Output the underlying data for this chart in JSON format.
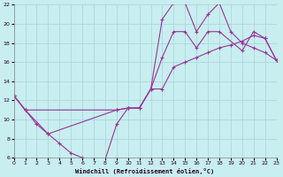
{
  "bg_color": "#c8eef0",
  "grid_color": "#a8d4d8",
  "line_color": "#993399",
  "xlabel": "Windchill (Refroidissement éolien,°C)",
  "xlim": [
    0,
    23
  ],
  "ylim": [
    6,
    22
  ],
  "xticks": [
    0,
    1,
    2,
    3,
    4,
    5,
    6,
    7,
    8,
    9,
    10,
    11,
    12,
    13,
    14,
    15,
    16,
    17,
    18,
    19,
    20,
    21,
    22,
    23
  ],
  "yticks": [
    6,
    8,
    10,
    12,
    14,
    16,
    18,
    20,
    22
  ],
  "line_a_x": [
    0,
    1,
    2,
    3,
    4,
    5,
    6,
    7,
    8,
    9,
    10,
    11,
    12,
    13,
    14,
    15,
    16,
    17,
    18,
    19,
    20,
    21,
    22,
    23
  ],
  "line_a_y": [
    12.5,
    11.0,
    9.5,
    8.5,
    7.5,
    6.5,
    6.0,
    5.8,
    5.8,
    9.5,
    11.2,
    11.2,
    13.2,
    20.5,
    22.2,
    22.2,
    19.2,
    21.0,
    22.2,
    19.2,
    18.0,
    17.5,
    17.0,
    16.2
  ],
  "line_b_x": [
    0,
    1,
    3,
    9,
    10,
    11,
    12,
    13,
    14,
    15,
    16,
    17,
    18,
    20,
    21,
    22,
    23
  ],
  "line_b_y": [
    12.5,
    11.0,
    8.5,
    11.0,
    11.2,
    11.2,
    13.2,
    16.5,
    19.2,
    19.2,
    17.5,
    19.2,
    19.2,
    17.2,
    19.2,
    18.5,
    16.2
  ],
  "line_c_x": [
    0,
    1,
    9,
    10,
    11,
    12,
    13,
    14,
    15,
    16,
    17,
    18,
    19,
    20,
    21,
    22,
    23
  ],
  "line_c_y": [
    12.5,
    11.0,
    11.0,
    11.2,
    11.2,
    13.2,
    13.2,
    15.5,
    16.0,
    16.5,
    17.0,
    17.5,
    17.8,
    18.2,
    18.8,
    18.5,
    16.2
  ]
}
